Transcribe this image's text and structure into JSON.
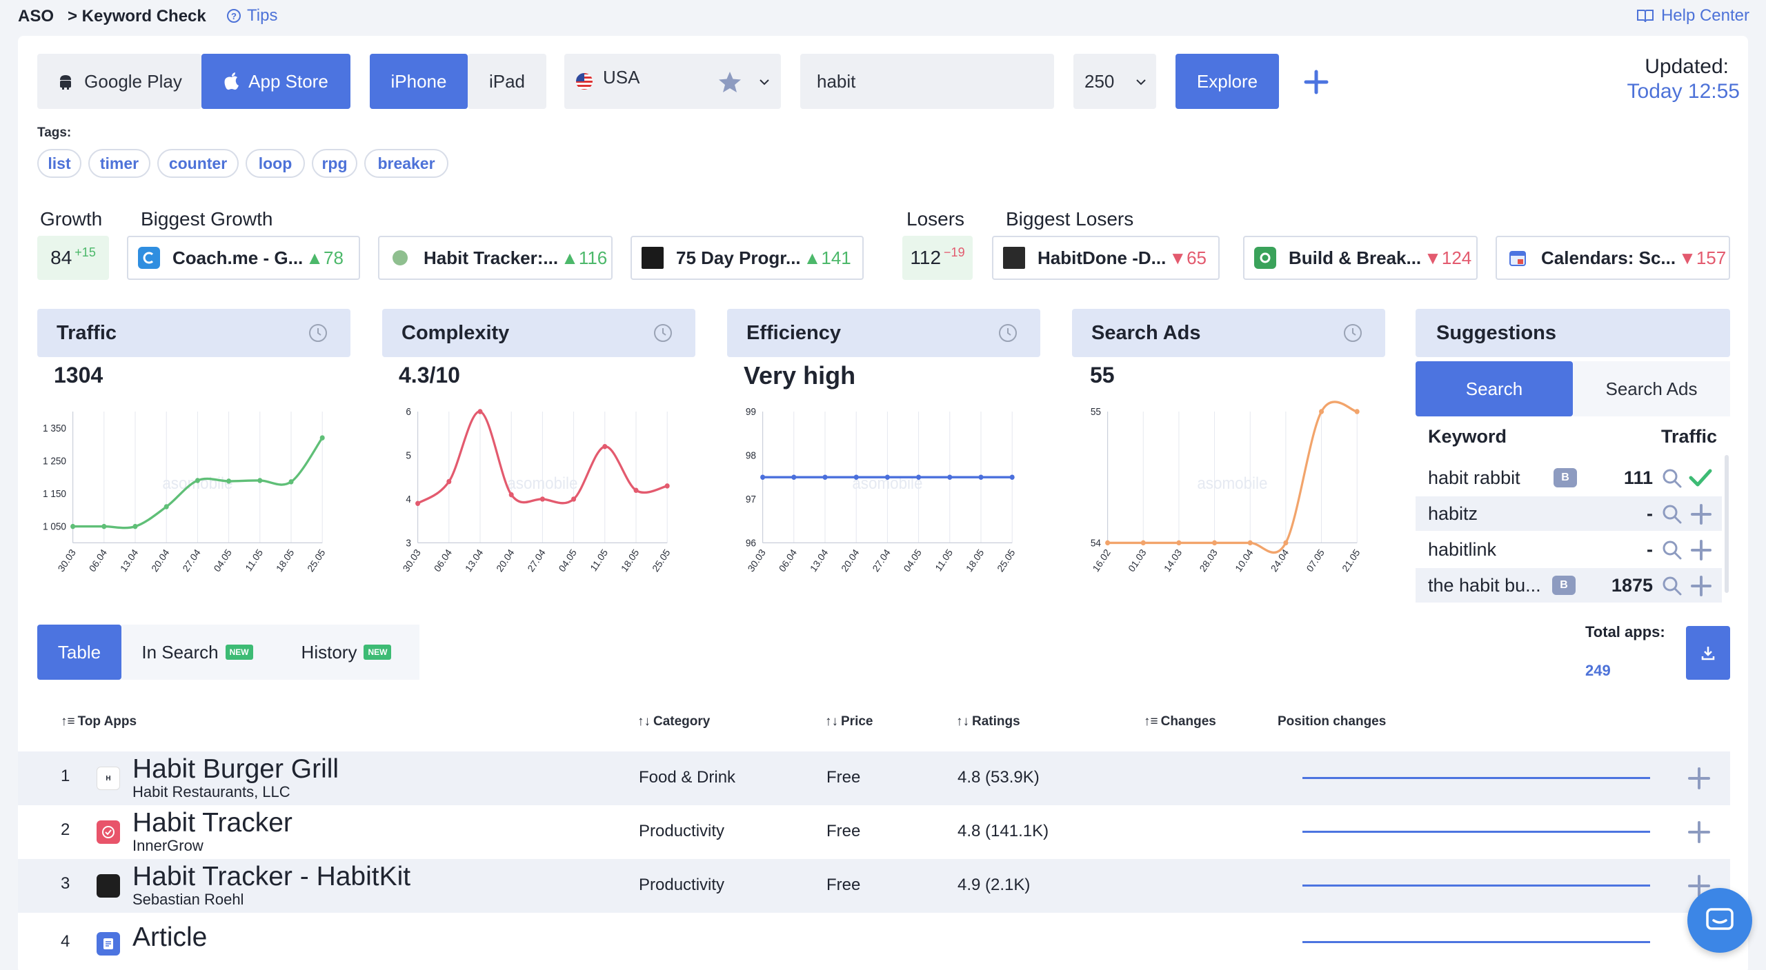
{
  "breadcrumb": {
    "root": "ASO",
    "page": "> Keyword Check",
    "tips": "Tips"
  },
  "help": {
    "label": "Help Center"
  },
  "controls": {
    "store_google": "Google Play",
    "store_apple": "App Store",
    "device_iphone": "iPhone",
    "device_ipad": "iPad",
    "country": "USA",
    "keyword": "habit",
    "count": "250",
    "explore": "Explore"
  },
  "updated": {
    "label": "Updated:",
    "value": "Today 12:55"
  },
  "tags": {
    "label": "Tags:",
    "items": [
      "list",
      "timer",
      "counter",
      "loop",
      "rpg",
      "breaker"
    ]
  },
  "growth": {
    "title": "Growth",
    "value": "84",
    "delta": "+15",
    "biggest_title": "Biggest Growth",
    "apps": [
      {
        "name": "Coach.me - G...",
        "value": "78",
        "icon_color": "#2f8ee0"
      },
      {
        "name": "Habit Tracker:...",
        "value": "116",
        "icon_color": "#7ab27d"
      },
      {
        "name": "75 Day Progr...",
        "value": "141",
        "icon_color": "#222222"
      }
    ]
  },
  "losers": {
    "title": "Losers",
    "value": "112",
    "delta": "−19",
    "biggest_title": "Biggest Losers",
    "apps": [
      {
        "name": "HabitDone -D...",
        "value": "65",
        "icon_color": "#2a2a2a"
      },
      {
        "name": "Build & Break...",
        "value": "124",
        "icon_color": "#3aa25a"
      },
      {
        "name": "Calendars: Sc...",
        "value": "157",
        "icon_color": "#e4504a"
      }
    ]
  },
  "metrics": [
    {
      "title": "Traffic",
      "value": "1304"
    },
    {
      "title": "Complexity",
      "value": "4.3/10"
    },
    {
      "title": "Efficiency",
      "value": "Very high"
    },
    {
      "title": "Search Ads",
      "value": "55"
    }
  ],
  "watermark": "asomobile",
  "chart_data": [
    {
      "type": "line",
      "color": "#5fbf77",
      "categories": [
        "30.03",
        "06.04",
        "13.04",
        "20.04",
        "27.04",
        "04.05",
        "11.05",
        "18.05",
        "25.05"
      ],
      "values": [
        1050,
        1050,
        1050,
        1110,
        1190,
        1188,
        1190,
        1186,
        1320
      ],
      "ylim": [
        1000,
        1400
      ],
      "yticks": [
        1350,
        1250,
        1150,
        1050
      ],
      "ytick_labels": [
        "1 350",
        "1 250",
        "1 150",
        "1 050"
      ]
    },
    {
      "type": "line",
      "color": "#e35a6e",
      "categories": [
        "30.03",
        "06.04",
        "13.04",
        "20.04",
        "27.04",
        "04.05",
        "11.05",
        "18.05",
        "25.05"
      ],
      "values": [
        3.9,
        4.4,
        6.0,
        4.1,
        4.0,
        4.0,
        5.2,
        4.2,
        4.3
      ],
      "ylim": [
        3,
        6
      ],
      "yticks": [
        6,
        5,
        4,
        3
      ],
      "ytick_labels": [
        "6",
        "5",
        "4",
        "3"
      ]
    },
    {
      "type": "line",
      "color": "#4a6fdc",
      "categories": [
        "30.03",
        "06.04",
        "13.04",
        "20.04",
        "27.04",
        "04.05",
        "11.05",
        "18.05",
        "25.05"
      ],
      "values": [
        97.5,
        97.5,
        97.5,
        97.5,
        97.5,
        97.5,
        97.5,
        97.5,
        97.5
      ],
      "ylim": [
        96,
        99
      ],
      "yticks": [
        99,
        98,
        97,
        96
      ],
      "ytick_labels": [
        "99",
        "98",
        "97",
        "96"
      ]
    },
    {
      "type": "line",
      "color": "#f2a46b",
      "categories": [
        "16.02",
        "01.03",
        "14.03",
        "28.03",
        "10.04",
        "24.04",
        "07.05",
        "21.05"
      ],
      "values": [
        54,
        54,
        54,
        54,
        54,
        54,
        55,
        55
      ],
      "ylim": [
        54,
        55
      ],
      "yticks": [
        55,
        54
      ],
      "ytick_labels": [
        "55",
        "54"
      ]
    }
  ],
  "suggestions": {
    "title": "Suggestions",
    "tab_search": "Search",
    "tab_ads": "Search Ads",
    "col_keyword": "Keyword",
    "col_traffic": "Traffic",
    "rows": [
      {
        "keyword": "habit rabbit",
        "badge": "B",
        "traffic": "111",
        "added": true
      },
      {
        "keyword": "habitz",
        "badge": "",
        "traffic": "-",
        "added": false
      },
      {
        "keyword": "habitlink",
        "badge": "",
        "traffic": "-",
        "added": false
      },
      {
        "keyword": "the habit bu...",
        "badge": "B",
        "traffic": "1875",
        "added": false
      }
    ]
  },
  "total_apps": {
    "label": "Total apps:",
    "value": "249"
  },
  "view_tabs": {
    "table": "Table",
    "in_search": "In Search",
    "history": "History",
    "new_badge": "NEW"
  },
  "table": {
    "headers": {
      "top_apps": "Top Apps",
      "category": "Category",
      "price": "Price",
      "ratings": "Ratings",
      "changes": "Changes",
      "position_changes": "Position changes"
    },
    "rows": [
      {
        "rank": "1",
        "name": "Habit Burger Grill",
        "developer": "Habit Restaurants, LLC",
        "category": "Food & Drink",
        "price": "Free",
        "ratings": "4.8 (53.9K)",
        "icon_color": "#ffffff"
      },
      {
        "rank": "2",
        "name": "Habit Tracker",
        "developer": "InnerGrow",
        "category": "Productivity",
        "price": "Free",
        "ratings": "4.8 (141.1K)",
        "icon_color": "#e8546a"
      },
      {
        "rank": "3",
        "name": "Habit Tracker - HabitKit",
        "developer": "Sebastian Roehl",
        "category": "Productivity",
        "price": "Free",
        "ratings": "4.9 (2.1K)",
        "icon_color": "#1e1e1e"
      },
      {
        "rank": "4",
        "name": "Article",
        "developer": "",
        "category": "",
        "price": "",
        "ratings": "",
        "icon_color": "#4c74e0"
      }
    ]
  }
}
